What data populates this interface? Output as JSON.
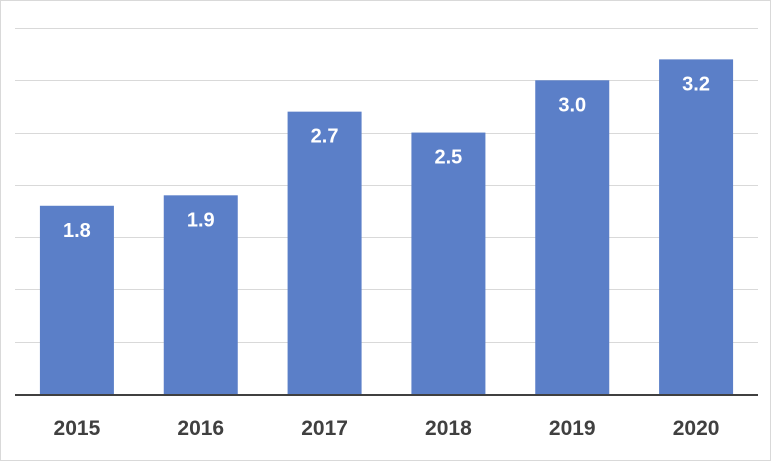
{
  "chart_data": {
    "type": "bar",
    "categories": [
      "2015",
      "2016",
      "2017",
      "2018",
      "2019",
      "2020"
    ],
    "values": [
      1.8,
      1.9,
      2.7,
      2.5,
      3.0,
      3.2
    ],
    "data_labels": [
      "1.8",
      "1.9",
      "2.7",
      "2.5",
      "3.0",
      "3.2"
    ],
    "ylim": [
      0,
      3.5
    ],
    "gridlines": true,
    "legend": "none",
    "bar_color": "#5b7fc8",
    "label_color": "#ffffff",
    "tick_label_color": "#404040",
    "grid_color": "#d9d9d9",
    "axis_color": "#404040"
  }
}
